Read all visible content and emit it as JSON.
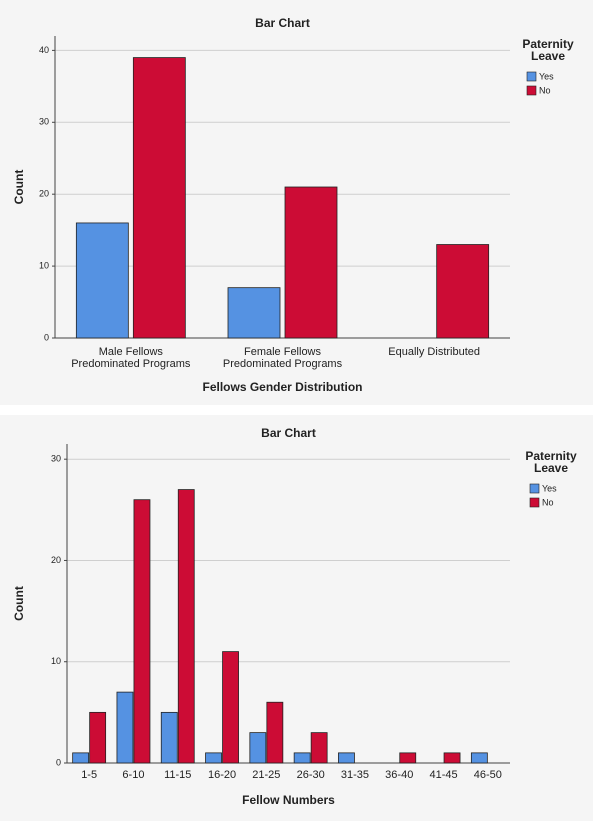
{
  "chart_data": [
    {
      "type": "bar",
      "title": "Bar Chart",
      "x_label": "Fellows Gender Distribution",
      "y_label": "Count",
      "categories": [
        "Male Fellows\nPredominated Programs",
        "Female Fellows\nPredominated Programs",
        "Equally Distributed"
      ],
      "series": [
        {
          "name": "Yes",
          "color": "#5592e2",
          "values": [
            16,
            7,
            null
          ]
        },
        {
          "name": "No",
          "color": "#cc0c35",
          "values": [
            39,
            21,
            13
          ]
        }
      ],
      "legend_title": "Paternity\nLeave",
      "legend": "right",
      "ylim": [
        0,
        42
      ],
      "yticks": [
        0,
        10,
        20,
        30,
        40
      ],
      "grid": true
    },
    {
      "type": "bar",
      "title": "Bar Chart",
      "x_label": "Fellow Numbers",
      "y_label": "Count",
      "categories": [
        "1-5",
        "6-10",
        "11-15",
        "16-20",
        "21-25",
        "26-30",
        "31-35",
        "36-40",
        "41-45",
        "46-50"
      ],
      "series": [
        {
          "name": "Yes",
          "color": "#5592e2",
          "values": [
            1,
            7,
            5,
            1,
            3,
            1,
            1,
            null,
            null,
            1
          ]
        },
        {
          "name": "No",
          "color": "#cc0c35",
          "values": [
            5,
            26,
            27,
            11,
            6,
            3,
            null,
            1,
            1,
            null
          ]
        }
      ],
      "legend_title": "Paternity\nLeave",
      "legend": "right",
      "ylim": [
        0,
        31.5
      ],
      "yticks": [
        0,
        10,
        20,
        30
      ],
      "grid": true
    }
  ]
}
